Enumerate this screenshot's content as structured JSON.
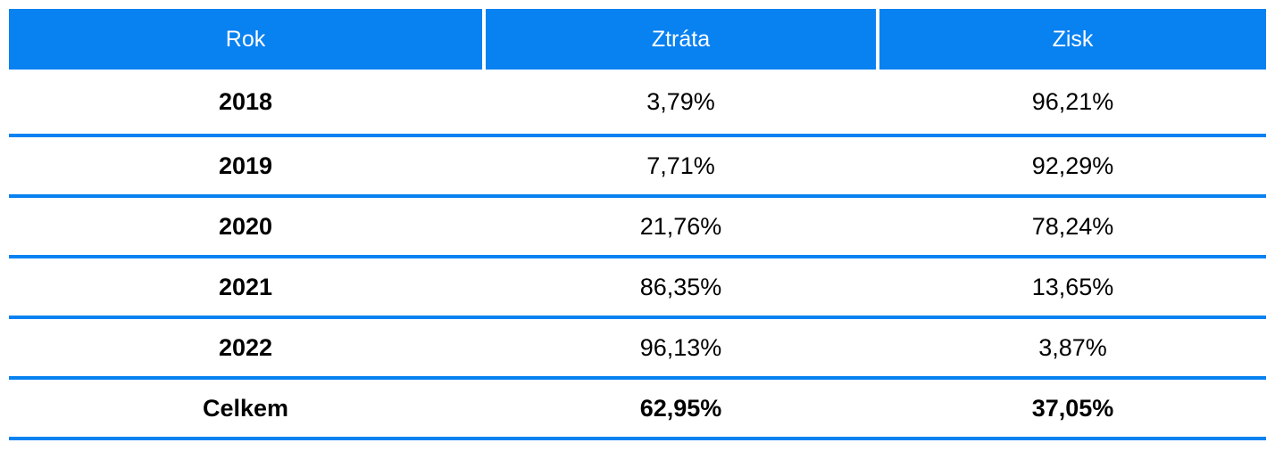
{
  "table": {
    "columns": [
      {
        "label": "Rok"
      },
      {
        "label": "Ztráta"
      },
      {
        "label": "Zisk"
      }
    ],
    "rows": [
      {
        "year": "2018",
        "loss": "3,79%",
        "profit": "96,21%"
      },
      {
        "year": "2019",
        "loss": "7,71%",
        "profit": "92,29%"
      },
      {
        "year": "2020",
        "loss": "21,76%",
        "profit": "78,24%"
      },
      {
        "year": "2021",
        "loss": "86,35%",
        "profit": "13,65%"
      },
      {
        "year": "2022",
        "loss": "96,13%",
        "profit": "3,87%"
      },
      {
        "year": "Celkem",
        "loss": "62,95%",
        "profit": "37,05%"
      }
    ],
    "colors": {
      "header_bg": "#0881f1",
      "header_text": "#ffffff",
      "separator": "#0881f1",
      "body_text": "#000000",
      "background": "#ffffff"
    }
  },
  "chart_data": {
    "type": "table",
    "title": "",
    "columns": [
      "Rok",
      "Ztráta",
      "Zisk"
    ],
    "categories": [
      "2018",
      "2019",
      "2020",
      "2021",
      "2022"
    ],
    "series": [
      {
        "name": "Ztráta",
        "values": [
          3.79,
          7.71,
          21.76,
          86.35,
          96.13
        ]
      },
      {
        "name": "Zisk",
        "values": [
          96.21,
          92.29,
          78.24,
          13.65,
          3.87
        ]
      }
    ],
    "total_row": {
      "label": "Celkem",
      "ztrata": 62.95,
      "zisk": 37.05
    },
    "value_format": "percent, comma decimal separator",
    "layout": "header row blue with white text; bold year column; bold totals row; blue horizontal row separators; no vertical gridlines in body"
  }
}
